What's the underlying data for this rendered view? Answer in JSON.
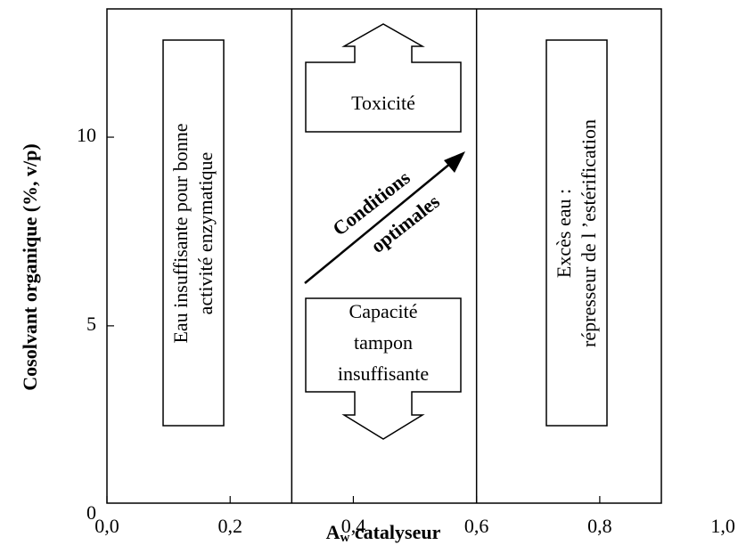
{
  "chart_data": {
    "type": "region-diagram",
    "ylabel": "Cosolvant organique (%, v/p)",
    "xlabel": {
      "main": "A",
      "sub": "w",
      "rest": " catalyseur"
    },
    "xlim": [
      0,
      0.9
    ],
    "ylim": [
      0.3,
      13.4
    ],
    "xticks": [
      {
        "value": 0,
        "label": "0,0"
      },
      {
        "value": 0.2,
        "label": "0,2"
      },
      {
        "value": 0.4,
        "label": "0,4"
      },
      {
        "value": 0.6,
        "label": "0,6"
      },
      {
        "value": 0.8,
        "label": "0,8"
      },
      {
        "value": 1,
        "label": "1,0"
      }
    ],
    "yticks": [
      0,
      5,
      10
    ],
    "dividers": [
      0.3,
      0.6
    ],
    "annotations": {
      "left": [
        "Eau insuffisante pour bonne",
        "activité enzymatique"
      ],
      "top": "Toxicité",
      "bottom": [
        "Capacité",
        "tampon",
        "insuffisante"
      ],
      "arrow": [
        "Conditions",
        "optimales"
      ],
      "right": [
        "Excès eau :",
        "répresseur de l ’estérification"
      ]
    }
  }
}
